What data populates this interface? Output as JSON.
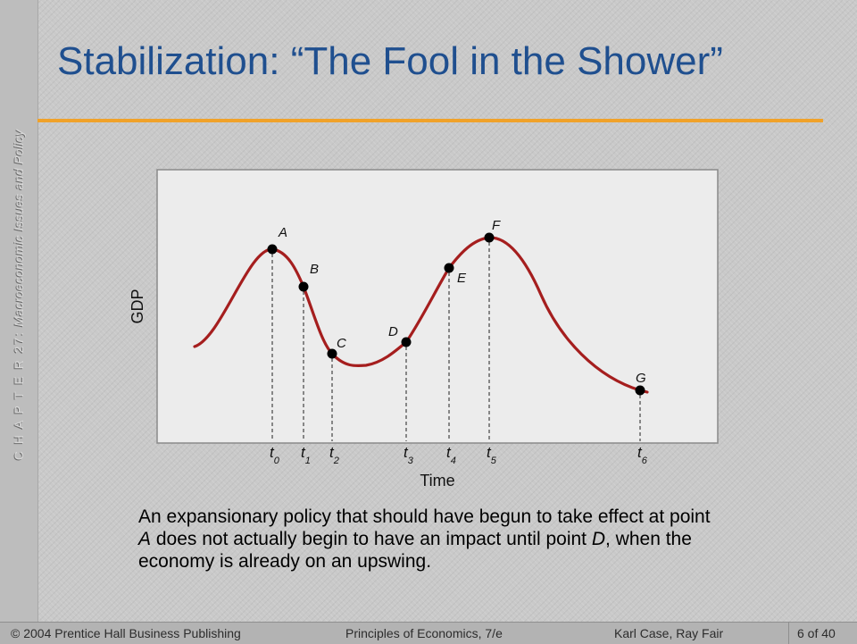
{
  "slide": {
    "side_label_chapter": "C H A P T E R  27:",
    "side_label_topic": "Macroeconomic Issues and Policy",
    "title": "Stabilization:  “The Fool in the Shower”",
    "caption": [
      {
        "text": "An expansionary policy that should have begun to take effect at point ",
        "italic": false
      },
      {
        "text": "A",
        "italic": true
      },
      {
        "text": " does not actually begin to have an impact until point ",
        "italic": false
      },
      {
        "text": "D",
        "italic": true
      },
      {
        "text": ", when the economy is already on an upswing.",
        "italic": false
      }
    ],
    "footer": {
      "left": "© 2004 Prentice Hall Business Publishing",
      "middle": "Principles of Economics, 7/e",
      "right": "Karl Case, Ray Fair",
      "page": "6 of 40"
    }
  },
  "diagram": {
    "y_axis_label": "GDP",
    "x_axis_label": "Time",
    "curve_color": "#a51e1e",
    "accent_color": "#f0a22a",
    "title_color": "#1f4f8f",
    "points": [
      {
        "label": "A",
        "time": "t",
        "sub": "0"
      },
      {
        "label": "B",
        "time": "t",
        "sub": "1"
      },
      {
        "label": "C",
        "time": "t",
        "sub": "2"
      },
      {
        "label": "D",
        "time": "t",
        "sub": "3"
      },
      {
        "label": "E",
        "time": "t",
        "sub": "4"
      },
      {
        "label": "F",
        "time": "t",
        "sub": "5"
      },
      {
        "label": "G",
        "time": "t",
        "sub": "6"
      }
    ]
  }
}
